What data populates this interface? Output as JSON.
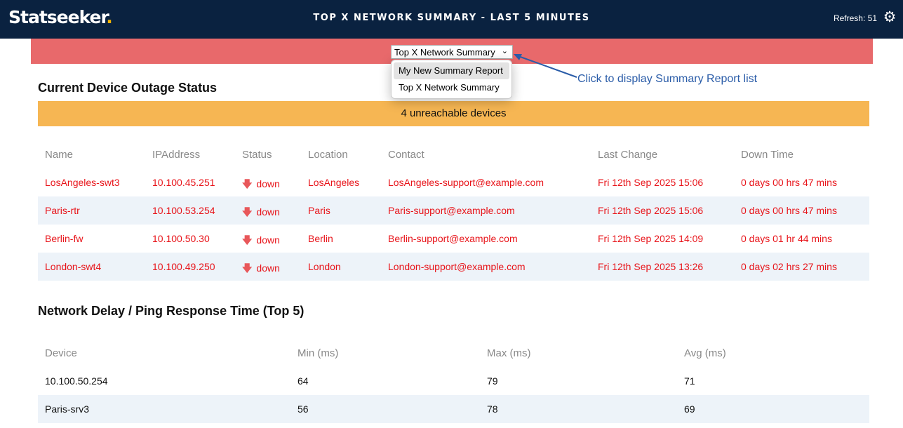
{
  "header": {
    "logo": "Statseeker",
    "title": "TOP X NETWORK SUMMARY - LAST 5 MINUTES",
    "refresh": "Refresh: 51",
    "settings_icon": "gear-icon"
  },
  "report_select": {
    "value": "Top X Network Summary",
    "options": [
      "My New Summary Report",
      "Top X Network Summary"
    ],
    "highlighted": "My New Summary Report"
  },
  "annotation": "Click to display Summary Report list",
  "outage": {
    "title": "Current Device Outage Status",
    "banner": "4 unreachable devices",
    "columns": [
      "Name",
      "IPAddress",
      "Status",
      "Location",
      "Contact",
      "Last Change",
      "Down Time"
    ],
    "rows": [
      [
        "LosAngeles-swt3",
        "10.100.45.251",
        "down",
        "LosAngeles",
        "LosAngeles-support@example.com",
        "Fri 12th Sep 2025 15:06",
        "0 days 00 hrs 47 mins"
      ],
      [
        "Paris-rtr",
        "10.100.53.254",
        "down",
        "Paris",
        "Paris-support@example.com",
        "Fri 12th Sep 2025 15:06",
        "0 days 00 hrs 47 mins"
      ],
      [
        "Berlin-fw",
        "10.100.50.30",
        "down",
        "Berlin",
        "Berlin-support@example.com",
        "Fri 12th Sep 2025 14:09",
        "0 days 01 hr 44 mins"
      ],
      [
        "London-swt4",
        "10.100.49.250",
        "down",
        "London",
        "London-support@example.com",
        "Fri 12th Sep 2025 13:26",
        "0 days 02 hrs 27 mins"
      ]
    ]
  },
  "ping": {
    "title": "Network Delay / Ping Response Time (Top 5)",
    "columns": [
      "Device",
      "Min (ms)",
      "Max (ms)",
      "Avg (ms)"
    ],
    "rows": [
      [
        "10.100.50.254",
        "64",
        "79",
        "71"
      ],
      [
        "Paris-srv3",
        "56",
        "78",
        "69"
      ]
    ]
  },
  "colors": {
    "header": "#0a2240",
    "alert_bar": "#e8696b",
    "banner": "#f6b653",
    "down_text": "#e8141a",
    "annotation": "#2a5ca8"
  }
}
